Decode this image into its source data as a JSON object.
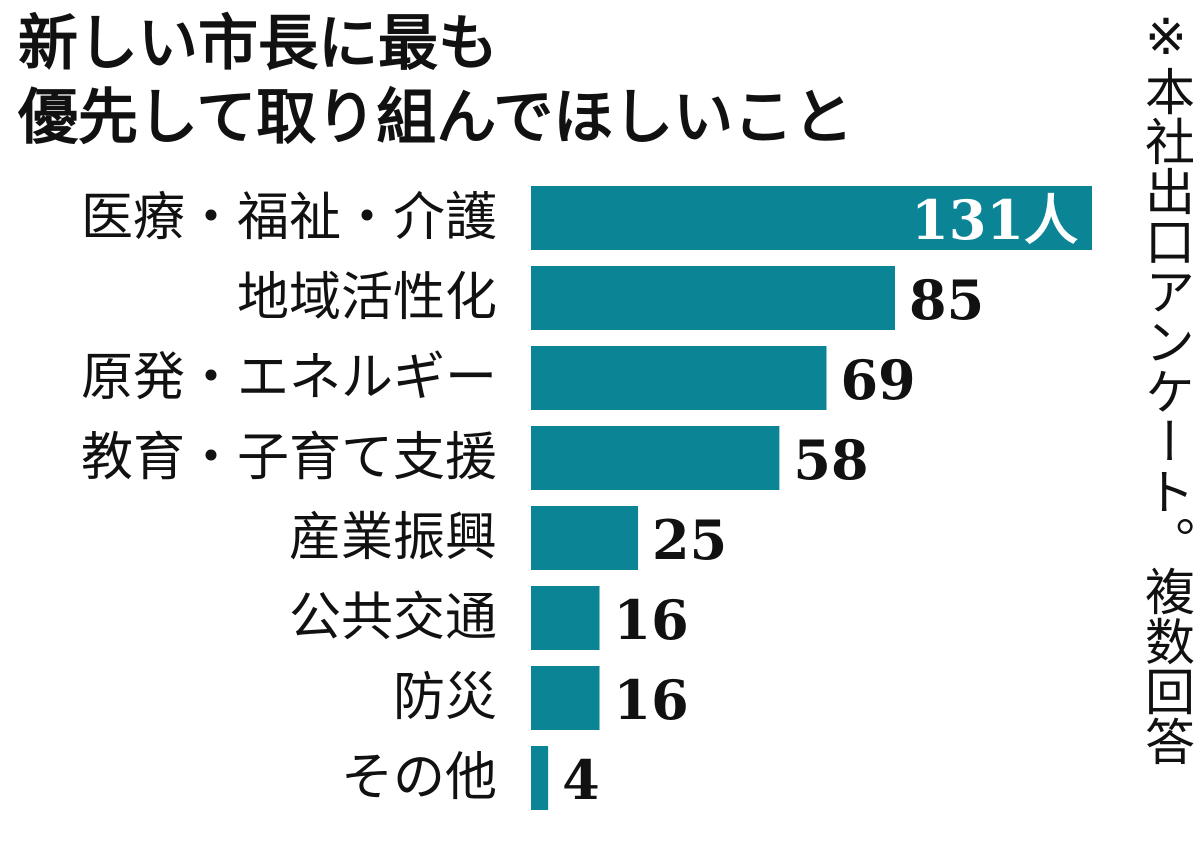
{
  "title": {
    "line1": "新しい市長に最も",
    "line2": "優先して取り組んでほしいこと"
  },
  "note": "※本社出口アンケート。複数回答",
  "colors": {
    "bar": "#0b8595",
    "text": "#111111",
    "inside_text": "#ffffff"
  },
  "chart_data": {
    "type": "bar",
    "orientation": "horizontal",
    "unit": "人",
    "categories": [
      "医療・福祉・介護",
      "地域活性化",
      "原発・エネルギー",
      "教育・子育て支援",
      "産業振興",
      "公共交通",
      "防災",
      "その他"
    ],
    "values": [
      131,
      85,
      69,
      58,
      25,
      16,
      16,
      4
    ],
    "value_labels": [
      "131人",
      "85",
      "69",
      "58",
      "25",
      "16",
      "16",
      "4"
    ],
    "xlim": [
      0,
      131
    ],
    "grid": false,
    "legend": "none"
  }
}
